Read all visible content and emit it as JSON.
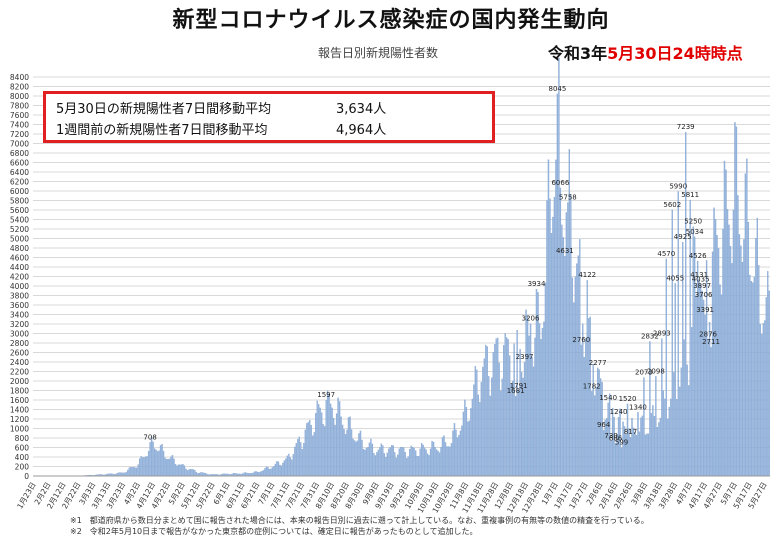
{
  "title": "新型コロナウイルス感染症の国内発生動向",
  "subtitle": "報告日別新規陽性者数",
  "datestamp": {
    "prefix": "令和3年",
    "date": "5月30日24時時点"
  },
  "callout": {
    "row1_label": "5月30日の新規陽性者7日間移動平均",
    "row1_value": "3,634人",
    "row2_label": "1週間前の新規陽性者7日間移動平均",
    "row2_value": "4,964人"
  },
  "footnotes": [
    "※1　都道府県から数日分まとめて国に報告された場合には、本来の報告日別に過去に遡って計上している。なお、重複事例の有無等の数値の精査を行っている。",
    "※2　令和2年5月10日まで報告がなかった東京都の症例については、確定日に報告があったものとして追加した。"
  ],
  "colors": {
    "bar": "#93b3dc",
    "bar_edge": "#6f93c7",
    "grid": "#d9d9d9",
    "accent_red": "#e02020"
  },
  "chart_data": {
    "type": "bar",
    "title": "報告日別新規陽性者数",
    "ylim": [
      0,
      8400
    ],
    "yticks": [
      0,
      200,
      400,
      600,
      800,
      1000,
      1200,
      1400,
      1600,
      1800,
      2000,
      2200,
      2400,
      2600,
      2800,
      3000,
      3200,
      3400,
      3600,
      3800,
      4000,
      4200,
      4400,
      4600,
      4800,
      5000,
      5200,
      5400,
      5600,
      5800,
      6000,
      6200,
      6400,
      6600,
      6800,
      7000,
      7200,
      7400,
      7600,
      7800,
      8000,
      8200,
      8400
    ],
    "grid": true,
    "xtick_labels": [
      "1月23日",
      "2月2日",
      "2月12日",
      "2月22日",
      "3月3日",
      "3月13日",
      "3月23日",
      "4月2日",
      "4月12日",
      "4月22日",
      "5月2日",
      "5月12日",
      "5月22日",
      "6月1日",
      "6月11日",
      "6月21日",
      "7月1日",
      "7月11日",
      "7月21日",
      "7月31日",
      "8月10日",
      "8月20日",
      "8月30日",
      "9月9日",
      "9月19日",
      "9月29日",
      "10月9日",
      "10月19日",
      "10月29日",
      "11月8日",
      "11月18日",
      "11月28日",
      "12月8日",
      "12月18日",
      "12月28日",
      "1月7日",
      "1月17日",
      "1月27日",
      "2月6日",
      "2月16日",
      "2月26日",
      "3月8日",
      "3月18日",
      "3月28日",
      "4月7日",
      "4月17日",
      "4月27日",
      "5月7日",
      "5月17日",
      "5月27日"
    ],
    "values_every_10_days": [
      1,
      1,
      3,
      5,
      20,
      40,
      70,
      250,
      700,
      400,
      200,
      80,
      30,
      45,
      55,
      80,
      200,
      350,
      800,
      1300,
      1500,
      1050,
      700,
      550,
      550,
      520,
      560,
      600,
      750,
      1300,
      2200,
      2500,
      2600,
      2800,
      3200,
      7200,
      5200,
      3300,
      1800,
      1200,
      1000,
      1000,
      1300,
      1800,
      2800,
      4000,
      5000,
      6000,
      5000,
      3400
    ],
    "annotations": [
      {
        "x": "4月11日",
        "value": 708
      },
      {
        "x": "8月7日",
        "value": 1597
      },
      {
        "x": "12月12日",
        "value": 1681
      },
      {
        "x": "12月14日",
        "value": 1791
      },
      {
        "x": "12月18日",
        "value": 2397
      },
      {
        "x": "12月22日",
        "value": 3206
      },
      {
        "x": "12月26日",
        "value": 3934
      },
      {
        "x": "1月8日",
        "value": 8045
      },
      {
        "x": "1月10日",
        "value": 6066
      },
      {
        "x": "1月13日",
        "value": 4631
      },
      {
        "x": "1月15日",
        "value": 5758
      },
      {
        "x": "1月24日",
        "value": 2760
      },
      {
        "x": "1月28日",
        "value": 4122
      },
      {
        "x": "1月31日",
        "value": 1782
      },
      {
        "x": "2月4日",
        "value": 2277
      },
      {
        "x": "2月8日",
        "value": 964
      },
      {
        "x": "2月11日",
        "value": 1540
      },
      {
        "x": "2月13日",
        "value": 739
      },
      {
        "x": "2月16日",
        "value": 686
      },
      {
        "x": "2月18日",
        "value": 1240
      },
      {
        "x": "2月20日",
        "value": 599
      },
      {
        "x": "2月24日",
        "value": 1520
      },
      {
        "x": "2月26日",
        "value": 817
      },
      {
        "x": "3月3日",
        "value": 1340
      },
      {
        "x": "3月7日",
        "value": 2073
      },
      {
        "x": "3月11日",
        "value": 2832
      },
      {
        "x": "3月15日",
        "value": 2098
      },
      {
        "x": "3月19日",
        "value": 2893
      },
      {
        "x": "3月22日",
        "value": 4570
      },
      {
        "x": "3月26日",
        "value": 5602
      },
      {
        "x": "3月28日",
        "value": 4055
      },
      {
        "x": "3月30日",
        "value": 5990
      },
      {
        "x": "4月2日",
        "value": 4925
      },
      {
        "x": "4月4日",
        "value": 7239
      },
      {
        "x": "4月7日",
        "value": 5811
      },
      {
        "x": "4月9日",
        "value": 5250
      },
      {
        "x": "4月10日",
        "value": 5034
      },
      {
        "x": "4月12日",
        "value": 4526
      },
      {
        "x": "4月13日",
        "value": 4131
      },
      {
        "x": "4月14日",
        "value": 4035
      },
      {
        "x": "4月15日",
        "value": 3897
      },
      {
        "x": "4月16日",
        "value": 3706
      },
      {
        "x": "4月17日",
        "value": 3391
      },
      {
        "x": "4月19日",
        "value": 2876
      },
      {
        "x": "4月21日",
        "value": 2711
      }
    ]
  }
}
